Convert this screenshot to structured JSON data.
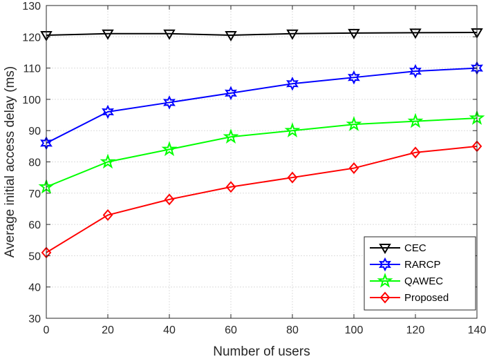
{
  "chart_data": {
    "type": "line",
    "title": "",
    "xlabel": "Number of users",
    "ylabel": "Average initial access delay (ms)",
    "x": [
      0,
      20,
      40,
      60,
      80,
      100,
      120,
      140
    ],
    "xlim": [
      0,
      140
    ],
    "ylim": [
      30,
      130
    ],
    "xticks": [
      0,
      20,
      40,
      60,
      80,
      100,
      120,
      140
    ],
    "yticks": [
      30,
      40,
      50,
      60,
      70,
      80,
      90,
      100,
      110,
      120,
      130
    ],
    "grid": true,
    "legend_position": "bottom-right",
    "series": [
      {
        "name": "CEC",
        "color": "#000000",
        "marker": "triangle-down",
        "values": [
          120.5,
          121,
          121,
          120.5,
          121,
          121.2,
          121.3,
          121.4
        ]
      },
      {
        "name": "RARCP",
        "color": "#0000ff",
        "marker": "hexagram",
        "values": [
          86,
          96,
          99,
          102,
          105,
          107,
          109,
          110
        ]
      },
      {
        "name": "QAWEC",
        "color": "#00ff00",
        "marker": "pentagram",
        "values": [
          72,
          80,
          84,
          88,
          90,
          92,
          93,
          94
        ]
      },
      {
        "name": "Proposed",
        "color": "#ff0000",
        "marker": "diamond",
        "values": [
          51,
          63,
          68,
          72,
          75,
          78,
          83,
          85
        ]
      }
    ]
  }
}
